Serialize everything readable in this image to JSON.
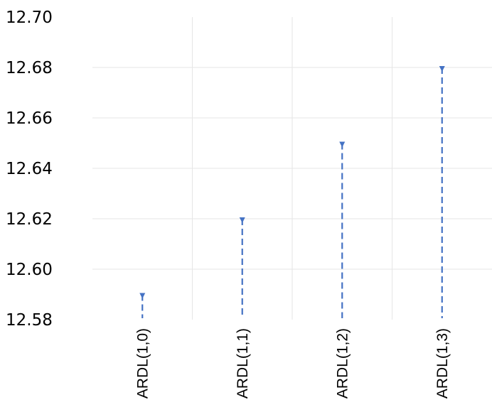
{
  "chart_data": {
    "type": "line",
    "title": "",
    "xlabel": "",
    "ylabel": "",
    "categories": [
      "ARDL(1,0)",
      "ARDL(1,1)",
      "ARDL(1,2)",
      "ARDL(1,3)"
    ],
    "values": [
      12.59,
      12.62,
      12.65,
      12.68
    ],
    "ylim": [
      12.58,
      12.7
    ],
    "yticks": [
      "12.70",
      "12.68",
      "12.66",
      "12.64",
      "12.62",
      "12.60",
      "12.58"
    ],
    "baseline": 12.58,
    "grid": true,
    "series_color": "#4472C4",
    "grid_color": "#E6E6E6",
    "line_style": "dashed drop line with triangle marker"
  }
}
